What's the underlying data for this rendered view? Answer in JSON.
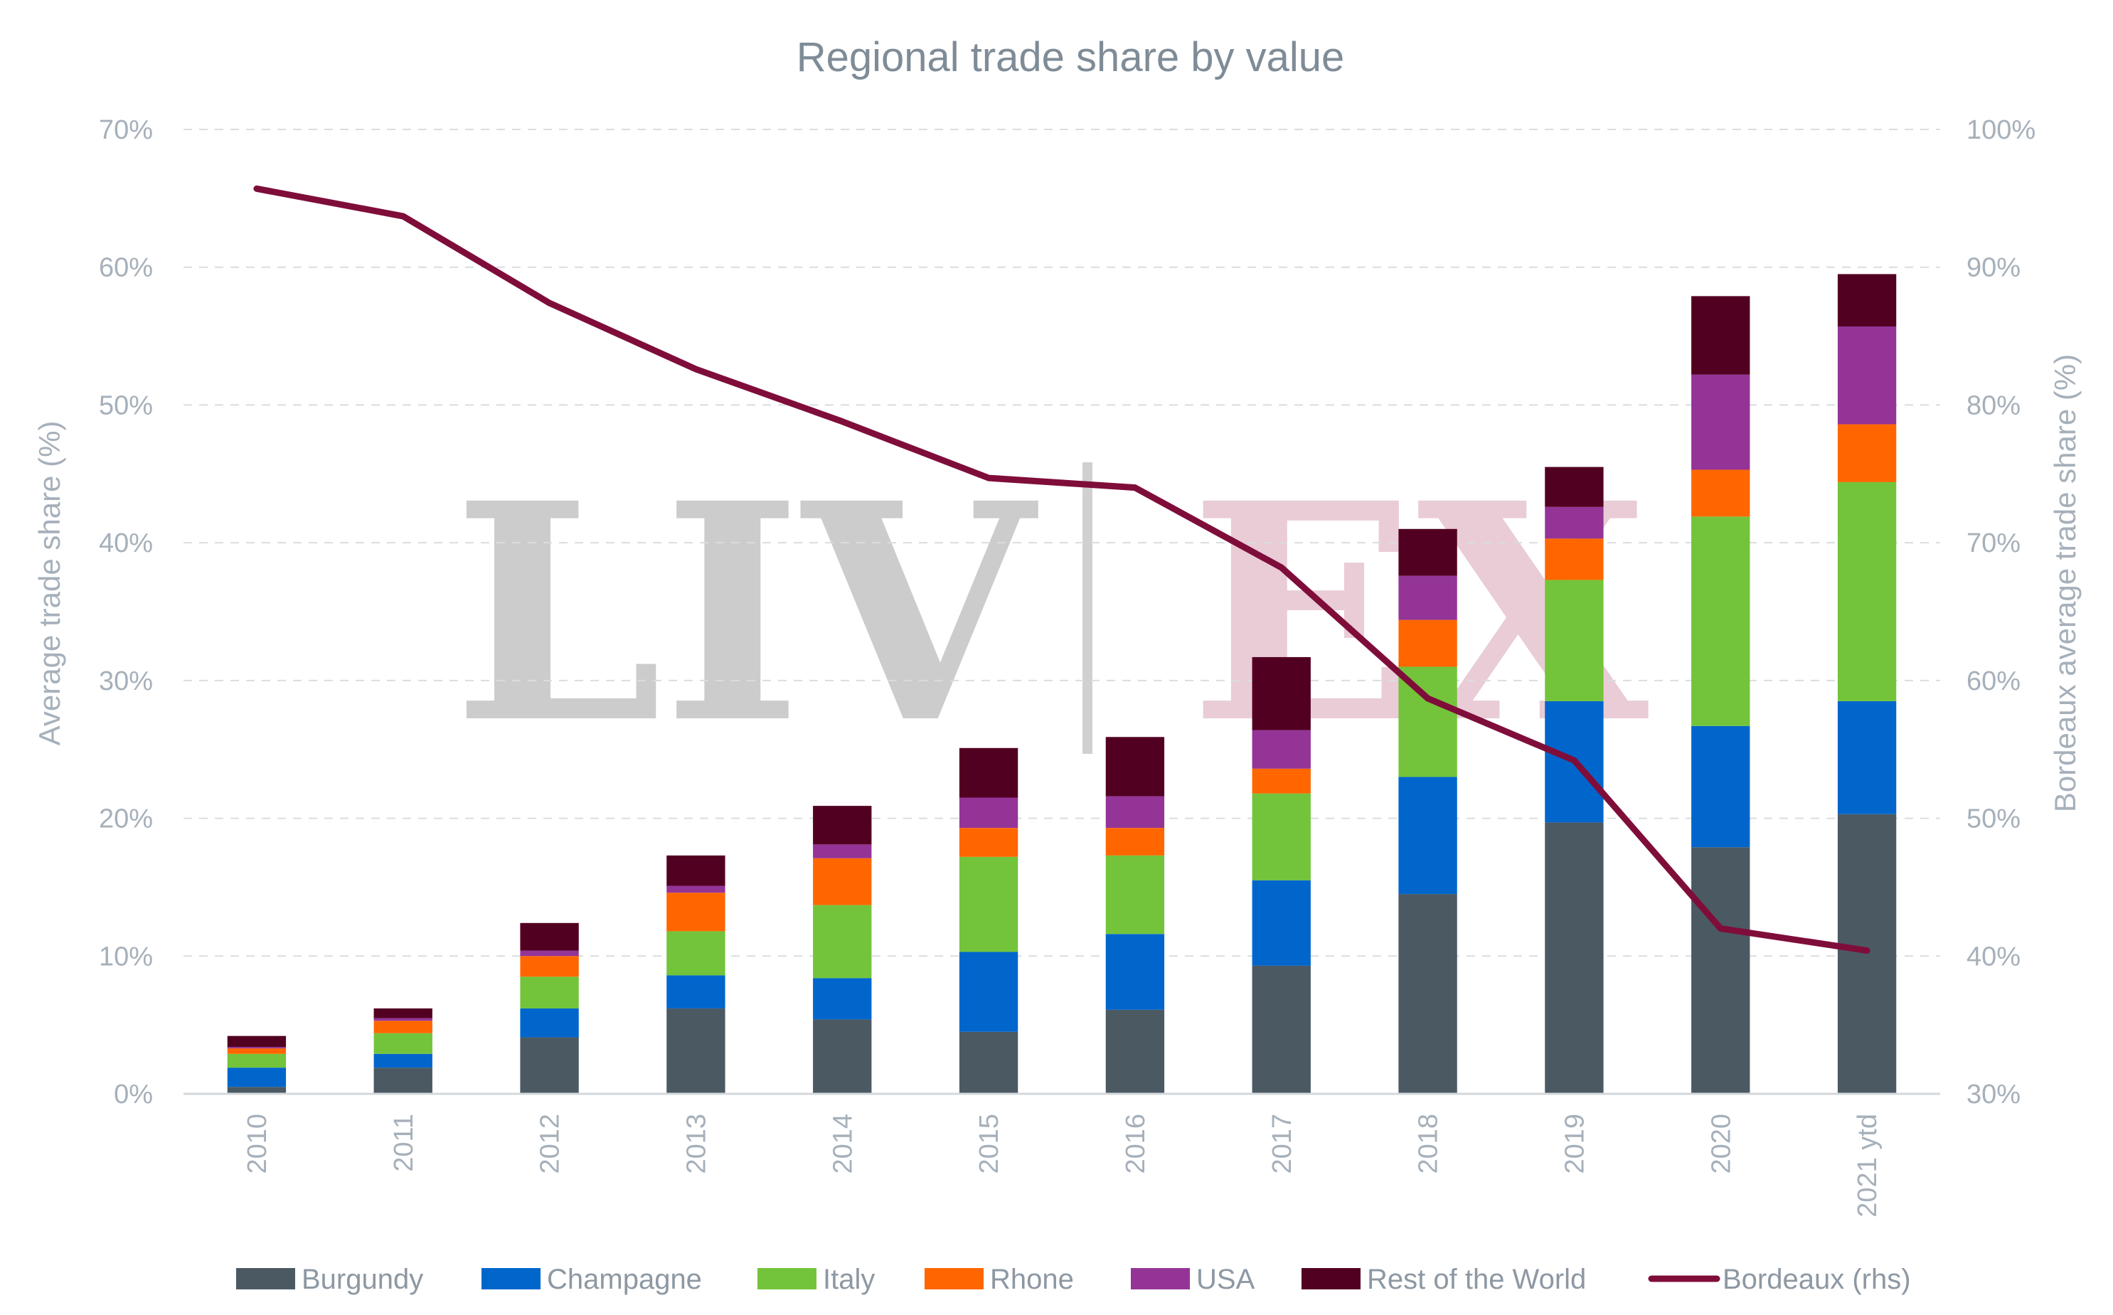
{
  "chart_data": {
    "type": "bar",
    "title": "Regional trade share by value",
    "stacked": true,
    "categories": [
      "2010",
      "2011",
      "2012",
      "2013",
      "2014",
      "2015",
      "2016",
      "2017",
      "2018",
      "2019",
      "2020",
      "2021 ytd"
    ],
    "series": [
      {
        "name": "Burgundy",
        "axis": "left",
        "color": "#4b5963",
        "values": [
          0.5,
          1.9,
          4.1,
          6.2,
          5.4,
          4.5,
          6.1,
          9.3,
          14.5,
          19.7,
          17.9,
          20.3
        ]
      },
      {
        "name": "Champagne",
        "axis": "left",
        "color": "#0066cc",
        "values": [
          1.4,
          1.0,
          2.1,
          2.4,
          3.0,
          5.8,
          5.5,
          6.2,
          8.5,
          8.8,
          8.8,
          8.2
        ]
      },
      {
        "name": "Italy",
        "axis": "left",
        "color": "#73c43a",
        "values": [
          1.0,
          1.5,
          2.3,
          3.2,
          5.3,
          6.9,
          5.7,
          6.3,
          8.0,
          8.8,
          15.2,
          15.9
        ]
      },
      {
        "name": "Rhone",
        "axis": "left",
        "color": "#ff6600",
        "values": [
          0.4,
          0.9,
          1.5,
          2.8,
          3.4,
          2.1,
          2.0,
          1.8,
          3.4,
          3.0,
          3.4,
          4.2
        ]
      },
      {
        "name": "USA",
        "axis": "left",
        "color": "#943497",
        "values": [
          0.1,
          0.2,
          0.4,
          0.5,
          1.0,
          2.2,
          2.3,
          2.8,
          3.2,
          2.3,
          6.9,
          7.1
        ]
      },
      {
        "name": "Rest of the World",
        "axis": "left",
        "color": "#520021",
        "values": [
          0.8,
          0.7,
          2.0,
          2.2,
          2.8,
          3.6,
          4.3,
          5.3,
          3.4,
          2.9,
          5.7,
          3.8
        ]
      },
      {
        "name": "Bordeaux (rhs)",
        "axis": "right",
        "type": "line",
        "color": "#7f0d3a",
        "values": [
          95.7,
          93.7,
          87.4,
          82.6,
          78.8,
          74.7,
          74.0,
          68.2,
          58.7,
          54.2,
          42.0,
          40.4
        ]
      }
    ],
    "ylabel": "Average trade share (%)",
    "ylim": [
      0,
      70
    ],
    "yticks": [
      "0%",
      "10%",
      "20%",
      "30%",
      "40%",
      "50%",
      "60%",
      "70%"
    ],
    "y2label": "Bordeaux average trade share (%)",
    "y2lim": [
      30,
      100
    ],
    "y2ticks": [
      "30%",
      "40%",
      "50%",
      "60%",
      "70%",
      "80%",
      "90%",
      "100%"
    ],
    "grid": true,
    "legend_position": "bottom"
  },
  "watermark": {
    "left_text": "LIV",
    "right_text": "EX"
  }
}
